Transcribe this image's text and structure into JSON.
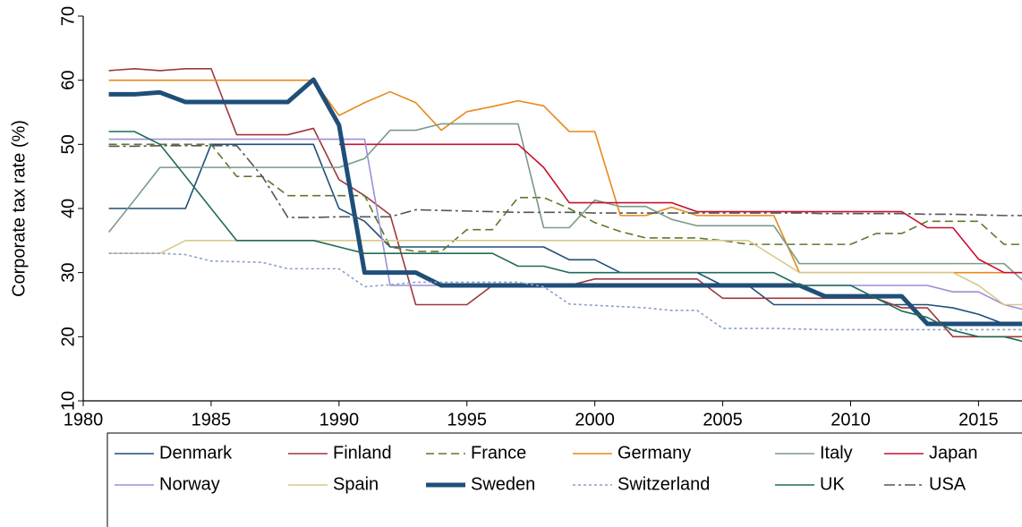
{
  "chart_data": {
    "type": "line",
    "y_label": "Corporate tax rate (%)",
    "x": [
      1981,
      1982,
      1983,
      1984,
      1985,
      1986,
      1987,
      1988,
      1989,
      1990,
      1991,
      1992,
      1993,
      1994,
      1995,
      1996,
      1997,
      1998,
      1999,
      2000,
      2001,
      2002,
      2003,
      2004,
      2005,
      2006,
      2007,
      2008,
      2009,
      2010,
      2011,
      2012,
      2013,
      2014,
      2015,
      2016,
      2017
    ],
    "xlim": [
      1980,
      2016.7
    ],
    "xticks": [
      1980,
      1985,
      1990,
      1995,
      2000,
      2005,
      2010,
      2015
    ],
    "ylim": [
      10,
      70
    ],
    "yticks": [
      10,
      20,
      30,
      40,
      50,
      60,
      70
    ],
    "grid": false,
    "series": [
      {
        "name": "Denmark",
        "color": "#1f4e79",
        "dash": "solid",
        "width": 1.6,
        "values": [
          40,
          40,
          40,
          40,
          50,
          50,
          50,
          50,
          50,
          40,
          38,
          34,
          34,
          34,
          34,
          34,
          34,
          34,
          32,
          32,
          30,
          30,
          30,
          30,
          28,
          28,
          25,
          25,
          25,
          25,
          25,
          25,
          25,
          24.5,
          23.5,
          22,
          22
        ]
      },
      {
        "name": "Finland",
        "color": "#a0373a",
        "dash": "solid",
        "width": 1.6,
        "values": [
          61.5,
          61.8,
          61.5,
          61.8,
          61.8,
          51.5,
          51.5,
          51.5,
          52.5,
          44.5,
          42,
          39,
          25,
          25,
          25,
          28,
          28,
          28,
          28,
          29,
          29,
          29,
          29,
          29,
          26,
          26,
          26,
          26,
          26,
          26,
          26,
          24.5,
          24.5,
          20,
          20,
          20,
          20
        ]
      },
      {
        "name": "France",
        "color": "#5a7a2a",
        "dash": "dashed",
        "width": 1.6,
        "values": [
          50,
          50,
          50,
          50,
          50,
          45,
          45,
          42,
          42,
          42,
          42,
          34,
          33.3,
          33.3,
          36.7,
          36.7,
          41.7,
          41.7,
          40,
          37.8,
          36.4,
          35.4,
          35.4,
          35.4,
          35,
          34.4,
          34.4,
          34.4,
          34.4,
          34.4,
          36.1,
          36.1,
          38,
          38,
          38,
          34.4,
          34.4
        ]
      },
      {
        "name": "Germany",
        "color": "#e8891b",
        "dash": "solid",
        "width": 1.6,
        "values": [
          60,
          60,
          60,
          60,
          60,
          60,
          60,
          60,
          60,
          54.5,
          56.5,
          58.2,
          56.5,
          52.2,
          55.1,
          55.9,
          56.8,
          56,
          52,
          52,
          38.9,
          38.9,
          40.2,
          38.9,
          38.9,
          38.9,
          38.9,
          30,
          30,
          30,
          30,
          30,
          30,
          30,
          30,
          30,
          30
        ]
      },
      {
        "name": "Italy",
        "color": "#7a9a8a",
        "dash": "solid",
        "width": 1.6,
        "values": [
          36.3,
          41.3,
          46.4,
          46.4,
          46.4,
          46.4,
          46.4,
          46.4,
          46.4,
          46.4,
          47.8,
          52.2,
          52.2,
          53.2,
          53.2,
          53.2,
          53.2,
          37,
          37,
          41.3,
          40.3,
          40.3,
          38.3,
          37.3,
          37.3,
          37.3,
          37.3,
          31.4,
          31.4,
          31.4,
          31.4,
          31.4,
          31.4,
          31.4,
          31.4,
          31.4,
          27.8
        ]
      },
      {
        "name": "Japan",
        "color": "#c8102e",
        "dash": "solid",
        "width": 1.6,
        "values": [
          null,
          null,
          null,
          null,
          null,
          null,
          null,
          null,
          null,
          50,
          50,
          50,
          50,
          50,
          50,
          50,
          50,
          46.4,
          40.9,
          40.9,
          40.9,
          40.9,
          40.9,
          39.5,
          39.5,
          39.5,
          39.5,
          39.5,
          39.5,
          39.5,
          39.5,
          39.5,
          37,
          37,
          32.1,
          30,
          30
        ]
      },
      {
        "name": "Norway",
        "color": "#9b8fd6",
        "dash": "solid",
        "width": 1.6,
        "values": [
          50.8,
          50.8,
          50.8,
          50.8,
          50.8,
          50.8,
          50.8,
          50.8,
          50.8,
          50.8,
          50.8,
          28,
          28,
          28,
          28,
          28,
          28,
          28,
          28,
          28,
          28,
          28,
          28,
          28,
          28,
          28,
          28,
          28,
          28,
          28,
          28,
          28,
          28,
          27,
          27,
          25,
          24
        ]
      },
      {
        "name": "Spain",
        "color": "#d7c98a",
        "dash": "solid",
        "width": 1.6,
        "values": [
          33,
          33,
          33,
          35,
          35,
          35,
          35,
          35,
          35,
          35,
          35,
          35,
          35,
          35,
          35,
          35,
          35,
          35,
          35,
          35,
          35,
          35,
          35,
          35,
          35,
          35,
          32.5,
          30,
          30,
          30,
          30,
          30,
          30,
          30,
          28,
          25,
          25
        ]
      },
      {
        "name": "Sweden",
        "color": "#1f4e79",
        "dash": "solid",
        "width": 5,
        "values": [
          57.8,
          57.8,
          58.1,
          56.6,
          56.6,
          56.6,
          56.6,
          56.6,
          60.1,
          53,
          30,
          30,
          30,
          28,
          28,
          28,
          28,
          28,
          28,
          28,
          28,
          28,
          28,
          28,
          28,
          28,
          28,
          28,
          26.3,
          26.3,
          26.3,
          26.3,
          22,
          22,
          22,
          22,
          22
        ]
      },
      {
        "name": "Switzerland",
        "color": "#8aa0c8",
        "dash": "dotted",
        "width": 1.6,
        "values": [
          33,
          33,
          33,
          32.8,
          31.8,
          31.7,
          31.6,
          30.6,
          30.6,
          30.6,
          27.8,
          28.1,
          28.5,
          28.5,
          28.5,
          28.5,
          28.5,
          27.8,
          25.1,
          24.9,
          24.7,
          24.5,
          24.1,
          24.1,
          21.3,
          21.3,
          21.3,
          21.2,
          21.1,
          21.1,
          21.1,
          21.1,
          21.1,
          21.1,
          21.1,
          21.1,
          21.1
        ]
      },
      {
        "name": "UK",
        "color": "#1f6b5a",
        "dash": "solid",
        "width": 1.6,
        "values": [
          52,
          52,
          50,
          45,
          40,
          35,
          35,
          35,
          35,
          34,
          33,
          33,
          33,
          33,
          33,
          33,
          31,
          31,
          30,
          30,
          30,
          30,
          30,
          30,
          30,
          30,
          30,
          28,
          28,
          28,
          26,
          24,
          23,
          21,
          20,
          20,
          19
        ]
      },
      {
        "name": "USA",
        "color": "#555555",
        "dash": "dashdot",
        "width": 1.6,
        "values": [
          49.7,
          49.7,
          49.8,
          49.8,
          49.8,
          49.8,
          45,
          38.6,
          38.6,
          38.7,
          38.7,
          38.7,
          39.8,
          39.7,
          39.6,
          39.5,
          39.4,
          39.4,
          39.4,
          39.3,
          39.3,
          39.3,
          39.3,
          39.3,
          39.3,
          39.3,
          39.3,
          39.3,
          39.2,
          39.2,
          39.2,
          39.2,
          39.1,
          39.1,
          39,
          38.9,
          38.9
        ]
      }
    ]
  }
}
